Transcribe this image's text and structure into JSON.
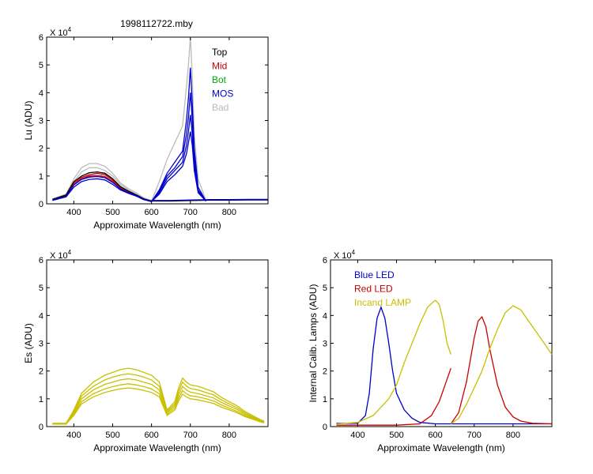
{
  "figure": {
    "title": "1998112722.mby"
  },
  "chart_data": [
    {
      "id": "lu",
      "type": "line",
      "title": "1998112722.mby",
      "xlabel": "Approximate Wavelength (nm)",
      "ylabel": "Lu (ADU)",
      "y_multiplier": "X 10",
      "y_exponent": "4",
      "xlim": [
        330,
        900
      ],
      "ylim": [
        0,
        6
      ],
      "xticks": [
        "400",
        "500",
        "600",
        "700",
        "800"
      ],
      "xtick_values": [
        400,
        500,
        600,
        700,
        800
      ],
      "yticks": [
        "0",
        "1",
        "2",
        "3",
        "4",
        "5",
        "6"
      ],
      "grid": false,
      "legend_position": "top-right",
      "legend": [
        {
          "label": "Top",
          "color": "#000000"
        },
        {
          "label": "Mid",
          "color": "#cc0000"
        },
        {
          "label": "Bot",
          "color": "#00aa00"
        },
        {
          "label": "MOS",
          "color": "#0000cc"
        },
        {
          "label": "Bad",
          "color": "#bbbbbb"
        }
      ],
      "series": [
        {
          "name": "Bad",
          "color": "#bbbbbb",
          "x": [
            345,
            380,
            400,
            420,
            440,
            460,
            480,
            500,
            520,
            540,
            560,
            580,
            600
          ],
          "y": [
            0.18,
            0.35,
            0.9,
            1.3,
            1.45,
            1.45,
            1.35,
            1.1,
            0.75,
            0.55,
            0.4,
            0.22,
            0.12
          ]
        },
        {
          "name": "Bad",
          "color": "#bbbbbb",
          "x": [
            345,
            380,
            400,
            420,
            440,
            460,
            480,
            500,
            520,
            540,
            560,
            580,
            600
          ],
          "y": [
            0.16,
            0.3,
            0.8,
            1.15,
            1.3,
            1.3,
            1.2,
            1.0,
            0.7,
            0.5,
            0.35,
            0.2,
            0.1
          ]
        },
        {
          "name": "Bad",
          "color": "#bbbbbb",
          "x": [
            600,
            620,
            640,
            660,
            680,
            690,
            695,
            700,
            705,
            710,
            720,
            740
          ],
          "y": [
            0.1,
            0.8,
            1.6,
            2.2,
            2.8,
            4.2,
            5.0,
            6.0,
            4.6,
            2.5,
            0.9,
            0.12
          ]
        },
        {
          "name": "Mid",
          "color": "#cc0000",
          "x": [
            345,
            380,
            400,
            420,
            440,
            460,
            480,
            500,
            520,
            540,
            560,
            580,
            600
          ],
          "y": [
            0.15,
            0.3,
            0.75,
            0.95,
            1.05,
            1.1,
            1.05,
            0.85,
            0.6,
            0.45,
            0.32,
            0.18,
            0.1
          ]
        },
        {
          "name": "Mid",
          "color": "#cc0000",
          "x": [
            345,
            380,
            400,
            420,
            440,
            460,
            480,
            500,
            520,
            540,
            560,
            580,
            600
          ],
          "y": [
            0.14,
            0.28,
            0.7,
            0.9,
            1.0,
            1.02,
            0.98,
            0.8,
            0.56,
            0.42,
            0.3,
            0.17,
            0.1
          ]
        },
        {
          "name": "Top",
          "color": "#000000",
          "x": [
            345,
            380,
            400,
            420,
            440,
            460,
            480,
            500,
            520,
            540,
            560,
            580,
            600
          ],
          "y": [
            0.16,
            0.32,
            0.8,
            1.0,
            1.12,
            1.15,
            1.1,
            0.9,
            0.62,
            0.46,
            0.33,
            0.18,
            0.1
          ]
        },
        {
          "name": "Top",
          "color": "#000000",
          "x": [
            600,
            650,
            700,
            750,
            800,
            850,
            900
          ],
          "y": [
            0.1,
            0.1,
            0.12,
            0.13,
            0.13,
            0.14,
            0.14
          ]
        },
        {
          "name": "MOS",
          "color": "#0000cc",
          "x": [
            345,
            380,
            400,
            420,
            440,
            460,
            480,
            500,
            520,
            540,
            560,
            580,
            600
          ],
          "y": [
            0.12,
            0.25,
            0.6,
            0.8,
            0.88,
            0.9,
            0.86,
            0.7,
            0.5,
            0.38,
            0.28,
            0.15,
            0.08
          ]
        },
        {
          "name": "MOS",
          "color": "#0000cc",
          "x": [
            345,
            380,
            400,
            420,
            440,
            460,
            480,
            500,
            520,
            540,
            560,
            580,
            600
          ],
          "y": [
            0.13,
            0.27,
            0.68,
            0.88,
            0.96,
            0.98,
            0.94,
            0.77,
            0.54,
            0.4,
            0.3,
            0.16,
            0.09
          ]
        },
        {
          "name": "MOS",
          "color": "#0000cc",
          "x": [
            600,
            620,
            640,
            660,
            680,
            690,
            695,
            700,
            705,
            710,
            720,
            740
          ],
          "y": [
            0.08,
            0.5,
            1.1,
            1.5,
            1.9,
            3.0,
            3.8,
            4.9,
            3.6,
            2.0,
            0.6,
            0.1
          ]
        },
        {
          "name": "MOS",
          "color": "#0000cc",
          "x": [
            600,
            620,
            640,
            660,
            680,
            690,
            695,
            700,
            705,
            710,
            720,
            740
          ],
          "y": [
            0.08,
            0.45,
            1.0,
            1.3,
            1.7,
            2.5,
            3.1,
            4.0,
            3.0,
            1.7,
            0.5,
            0.1
          ]
        },
        {
          "name": "MOS",
          "color": "#0000cc",
          "x": [
            600,
            620,
            640,
            660,
            680,
            690,
            695,
            700,
            705,
            710,
            720,
            740
          ],
          "y": [
            0.08,
            0.4,
            0.9,
            1.2,
            1.5,
            2.1,
            2.6,
            3.2,
            2.5,
            1.4,
            0.45,
            0.1
          ]
        },
        {
          "name": "MOS",
          "color": "#0000cc",
          "x": [
            600,
            620,
            640,
            660,
            680,
            690,
            695,
            700,
            705,
            710,
            720,
            740
          ],
          "y": [
            0.08,
            0.35,
            0.8,
            1.05,
            1.35,
            1.8,
            2.2,
            2.6,
            2.1,
            1.2,
            0.4,
            0.1
          ]
        },
        {
          "name": "MOS",
          "color": "#0000cc",
          "x": [
            600,
            650,
            700,
            750,
            800,
            850,
            900
          ],
          "y": [
            0.12,
            0.12,
            0.14,
            0.15,
            0.15,
            0.16,
            0.16
          ]
        }
      ]
    },
    {
      "id": "es",
      "type": "line",
      "xlabel": "Approximate Wavelength (nm)",
      "ylabel": "Es  (ADU)",
      "y_multiplier": "X 10",
      "y_exponent": "4",
      "xlim": [
        330,
        900
      ],
      "ylim": [
        0,
        6
      ],
      "xticks": [
        "400",
        "500",
        "600",
        "700",
        "800"
      ],
      "xtick_values": [
        400,
        500,
        600,
        700,
        800
      ],
      "yticks": [
        "0",
        "1",
        "2",
        "3",
        "4",
        "5",
        "6"
      ],
      "grid": false,
      "series": [
        {
          "color": "#c8c000",
          "x": [
            345,
            380,
            400,
            420,
            450,
            480,
            500,
            520,
            540,
            560,
            580,
            600,
            620,
            640,
            660,
            670,
            680,
            690,
            700,
            720,
            740,
            760,
            780,
            800,
            820,
            840,
            860,
            880,
            890
          ],
          "y": [
            0.12,
            0.12,
            0.6,
            1.2,
            1.6,
            1.85,
            1.95,
            2.05,
            2.1,
            2.05,
            1.95,
            1.85,
            1.6,
            0.6,
            0.9,
            1.4,
            1.75,
            1.6,
            1.5,
            1.45,
            1.35,
            1.25,
            1.05,
            0.9,
            0.75,
            0.55,
            0.4,
            0.25,
            0.2
          ]
        },
        {
          "color": "#c8c000",
          "x": [
            345,
            380,
            400,
            420,
            450,
            480,
            500,
            520,
            540,
            560,
            580,
            600,
            620,
            640,
            660,
            670,
            680,
            690,
            700,
            720,
            740,
            760,
            780,
            800,
            820,
            840,
            860,
            880,
            890
          ],
          "y": [
            0.11,
            0.11,
            0.55,
            1.1,
            1.45,
            1.68,
            1.78,
            1.86,
            1.9,
            1.86,
            1.78,
            1.68,
            1.45,
            0.55,
            0.82,
            1.28,
            1.6,
            1.46,
            1.37,
            1.32,
            1.23,
            1.14,
            0.96,
            0.82,
            0.68,
            0.5,
            0.36,
            0.23,
            0.18
          ]
        },
        {
          "color": "#c8c000",
          "x": [
            345,
            380,
            400,
            420,
            450,
            480,
            500,
            520,
            540,
            560,
            580,
            600,
            620,
            640,
            660,
            670,
            680,
            690,
            700,
            720,
            740,
            760,
            780,
            800,
            820,
            840,
            860,
            880,
            890
          ],
          "y": [
            0.1,
            0.1,
            0.5,
            1.0,
            1.32,
            1.52,
            1.6,
            1.68,
            1.72,
            1.68,
            1.6,
            1.52,
            1.32,
            0.5,
            0.75,
            1.15,
            1.45,
            1.32,
            1.24,
            1.19,
            1.11,
            1.03,
            0.87,
            0.74,
            0.62,
            0.45,
            0.33,
            0.21,
            0.16
          ]
        },
        {
          "color": "#c8c000",
          "x": [
            345,
            380,
            400,
            420,
            450,
            480,
            500,
            520,
            540,
            560,
            580,
            600,
            620,
            640,
            660,
            670,
            680,
            690,
            700,
            720,
            740,
            760,
            780,
            800,
            820,
            840,
            860,
            880,
            890
          ],
          "y": [
            0.09,
            0.09,
            0.45,
            0.9,
            1.18,
            1.36,
            1.44,
            1.5,
            1.54,
            1.5,
            1.44,
            1.36,
            1.18,
            0.45,
            0.67,
            1.03,
            1.3,
            1.18,
            1.11,
            1.07,
            1.0,
            0.92,
            0.78,
            0.66,
            0.55,
            0.4,
            0.3,
            0.19,
            0.15
          ]
        },
        {
          "color": "#c8c000",
          "x": [
            345,
            380,
            400,
            420,
            450,
            480,
            500,
            520,
            540,
            560,
            580,
            600,
            620,
            640,
            660,
            670,
            680,
            690,
            700,
            720,
            740,
            760,
            780,
            800,
            820,
            840,
            860,
            880,
            890
          ],
          "y": [
            0.09,
            0.09,
            0.4,
            0.82,
            1.07,
            1.23,
            1.3,
            1.36,
            1.39,
            1.36,
            1.3,
            1.23,
            1.07,
            0.4,
            0.6,
            0.93,
            1.17,
            1.07,
            1.0,
            0.96,
            0.9,
            0.83,
            0.7,
            0.6,
            0.5,
            0.36,
            0.27,
            0.17,
            0.13
          ]
        }
      ]
    },
    {
      "id": "lamps",
      "type": "line",
      "xlabel": "Approximate Wavelength (nm)",
      "ylabel": "Internal Calib. Lamps (ADU)",
      "y_multiplier": "X 10",
      "y_exponent": "4",
      "xlim": [
        330,
        900
      ],
      "ylim": [
        0,
        6
      ],
      "xticks": [
        "400",
        "500",
        "600",
        "700",
        "800"
      ],
      "xtick_values": [
        400,
        500,
        600,
        700,
        800
      ],
      "yticks": [
        "0",
        "1",
        "2",
        "3",
        "4",
        "5",
        "6"
      ],
      "grid": false,
      "legend_position": "top-left",
      "legend": [
        {
          "label": "Blue LED",
          "color": "#0000cc"
        },
        {
          "label": "Red LED",
          "color": "#cc0000"
        },
        {
          "label": "Incand LAMP",
          "color": "#c8c000"
        }
      ],
      "series": [
        {
          "name": "Blue LED",
          "color": "#0000cc",
          "x": [
            345,
            400,
            420,
            430,
            440,
            450,
            460,
            470,
            480,
            490,
            500,
            520,
            540,
            560,
            600,
            640,
            700,
            800,
            900
          ],
          "y": [
            0.12,
            0.12,
            0.4,
            1.2,
            2.8,
            3.9,
            4.3,
            3.9,
            3.0,
            2.0,
            1.2,
            0.6,
            0.3,
            0.15,
            0.1,
            0.1,
            0.1,
            0.1,
            0.1
          ]
        },
        {
          "name": "Red LED",
          "color": "#cc0000",
          "x": [
            345,
            500,
            560,
            590,
            610,
            625,
            640
          ],
          "y": [
            0.05,
            0.05,
            0.1,
            0.4,
            0.9,
            1.5,
            2.1
          ]
        },
        {
          "name": "Red LED",
          "color": "#cc0000",
          "x": [
            640,
            660,
            680,
            700,
            710,
            720,
            730,
            740,
            760,
            780,
            800,
            820,
            850,
            900
          ],
          "y": [
            0.1,
            0.5,
            1.6,
            3.2,
            3.8,
            3.95,
            3.6,
            2.8,
            1.5,
            0.7,
            0.35,
            0.2,
            0.12,
            0.1
          ]
        },
        {
          "name": "Incand LAMP",
          "color": "#c8c000",
          "x": [
            345,
            400,
            440,
            460,
            480,
            500,
            520,
            540,
            560,
            580,
            600,
            610,
            620,
            630,
            640
          ],
          "y": [
            0.1,
            0.15,
            0.4,
            0.7,
            1.0,
            1.5,
            2.3,
            3.0,
            3.7,
            4.3,
            4.55,
            4.4,
            3.8,
            3.0,
            2.6
          ]
        },
        {
          "name": "Incand LAMP",
          "color": "#c8c000",
          "x": [
            640,
            660,
            680,
            700,
            720,
            740,
            760,
            780,
            800,
            820,
            840,
            860,
            880,
            900
          ],
          "y": [
            0.1,
            0.3,
            0.8,
            1.4,
            2.0,
            2.8,
            3.5,
            4.1,
            4.35,
            4.2,
            3.8,
            3.4,
            3.0,
            2.6
          ]
        }
      ]
    }
  ]
}
